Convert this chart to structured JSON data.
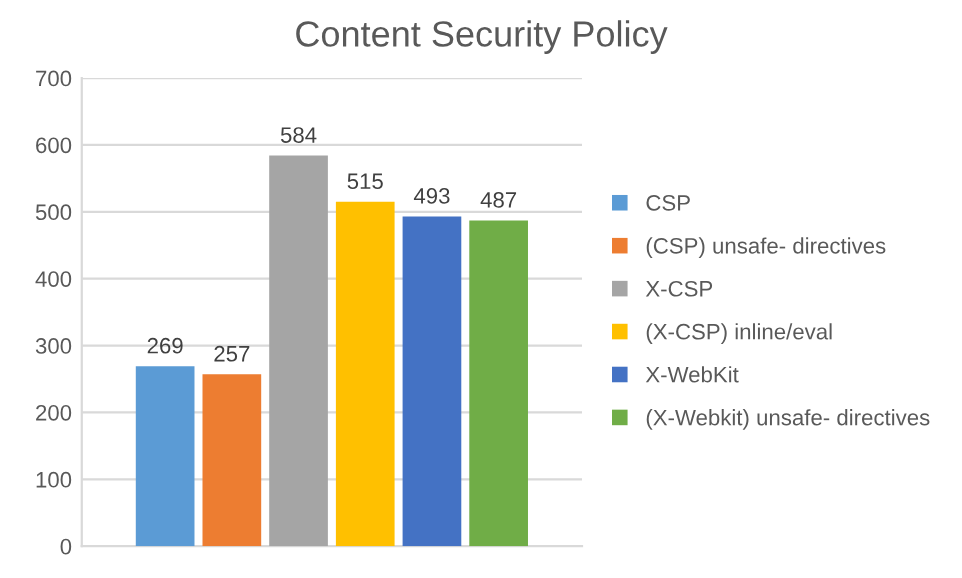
{
  "chart_data": {
    "type": "bar",
    "title": "Content Security Policy",
    "categories": [
      null
    ],
    "series": [
      {
        "name": "CSP",
        "color": "#5b9bd5",
        "values": [
          269
        ]
      },
      {
        "name": "(CSP) unsafe- directives",
        "color": "#ed7d31",
        "values": [
          257
        ]
      },
      {
        "name": "X-CSP",
        "color": "#a5a5a5",
        "values": [
          584
        ]
      },
      {
        "name": "(X-CSP) inline/eval",
        "color": "#ffc000",
        "values": [
          515
        ]
      },
      {
        "name": "X-WebKit",
        "color": "#4472c4",
        "values": [
          493
        ]
      },
      {
        "name": "(X-Webkit) unsafe- directives",
        "color": "#70ad47",
        "values": [
          487
        ]
      }
    ],
    "ylim": [
      0,
      700
    ],
    "yticks": [
      0,
      100,
      200,
      300,
      400,
      500,
      600,
      700
    ],
    "grid": "y",
    "legend": "right",
    "data_labels": true
  }
}
